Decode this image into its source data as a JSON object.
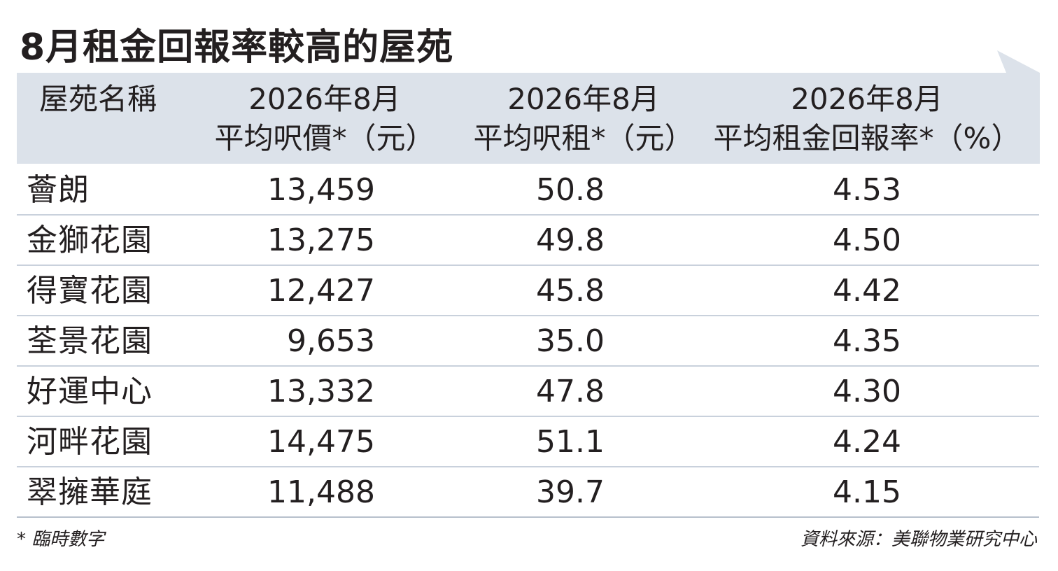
{
  "title": "8月租金回報率較高的屋苑",
  "header": {
    "name": "屋苑名稱",
    "price_line1": "2026年8月",
    "price_line2": "平均呎價*（元）",
    "rent_line1": "2026年8月",
    "rent_line2": "平均呎租*（元）",
    "yield_line1": "2026年8月",
    "yield_line2": "平均租金回報率*（%）"
  },
  "rows": [
    {
      "name": "薈朗",
      "price": "13,459",
      "rent": "50.8",
      "yield": "4.53"
    },
    {
      "name": "金獅花園",
      "price": "13,275",
      "rent": "49.8",
      "yield": "4.50"
    },
    {
      "name": "得寶花園",
      "price": "12,427",
      "rent": "45.8",
      "yield": "4.42"
    },
    {
      "name": "荃景花園",
      "price": "9,653",
      "rent": "35.0",
      "yield": "4.35"
    },
    {
      "name": "好運中心",
      "price": "13,332",
      "rent": "47.8",
      "yield": "4.30"
    },
    {
      "name": "河畔花園",
      "price": "14,475",
      "rent": "51.1",
      "yield": "4.24"
    },
    {
      "name": "翠擁華庭",
      "price": "11,488",
      "rent": "39.7",
      "yield": "4.15"
    }
  ],
  "footnote": "* 臨時數字",
  "source": "資料來源：美聯物業研究中心",
  "colors": {
    "header_bg": "#dce2ea",
    "divider": "#c9d1dc",
    "text": "#231f20"
  }
}
